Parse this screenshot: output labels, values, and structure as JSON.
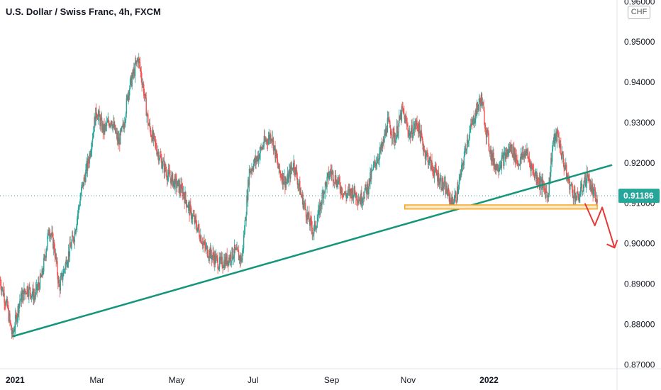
{
  "chart_data": {
    "type": "candlestick",
    "title": "U.S. Dollar / Swiss Franc, 4h, FXCM",
    "currency": "CHF",
    "ylim": [
      0.87,
      0.96
    ],
    "y_ticks": [
      "0.96000",
      "0.95000",
      "0.94000",
      "0.93000",
      "0.92000",
      "0.91000",
      "0.90000",
      "0.89000",
      "0.88000",
      "0.87000"
    ],
    "x_ticks": [
      "2021",
      "Mar",
      "May",
      "Jul",
      "Sep",
      "Nov",
      "2022"
    ],
    "current_price": "0.91186",
    "colors": {
      "up": "#26a69a",
      "down": "#ef5350",
      "trendline": "#15967a",
      "support_zone": "#f5a623",
      "arrow": "#e53935",
      "price_line": "#26a69a"
    },
    "price_path": [
      [
        0,
        0.891
      ],
      [
        3,
        0.884
      ],
      [
        5,
        0.877
      ],
      [
        8,
        0.886
      ],
      [
        11,
        0.889
      ],
      [
        14,
        0.887
      ],
      [
        17,
        0.892
      ],
      [
        20,
        0.904
      ],
      [
        22,
        0.899
      ],
      [
        24,
        0.889
      ],
      [
        27,
        0.896
      ],
      [
        30,
        0.902
      ],
      [
        33,
        0.913
      ],
      [
        36,
        0.921
      ],
      [
        39,
        0.933
      ],
      [
        42,
        0.928
      ],
      [
        45,
        0.931
      ],
      [
        48,
        0.925
      ],
      [
        50,
        0.929
      ],
      [
        52,
        0.938
      ],
      [
        54,
        0.942
      ],
      [
        56,
        0.946
      ],
      [
        58,
        0.939
      ],
      [
        60,
        0.93
      ],
      [
        62,
        0.926
      ],
      [
        65,
        0.921
      ],
      [
        68,
        0.917
      ],
      [
        71,
        0.915
      ],
      [
        74,
        0.913
      ],
      [
        77,
        0.908
      ],
      [
        80,
        0.904
      ],
      [
        83,
        0.899
      ],
      [
        86,
        0.897
      ],
      [
        89,
        0.895
      ],
      [
        92,
        0.896
      ],
      [
        95,
        0.898
      ],
      [
        98,
        0.896
      ],
      [
        101,
        0.918
      ],
      [
        104,
        0.921
      ],
      [
        107,
        0.925
      ],
      [
        110,
        0.927
      ],
      [
        113,
        0.918
      ],
      [
        116,
        0.915
      ],
      [
        119,
        0.92
      ],
      [
        122,
        0.912
      ],
      [
        125,
        0.906
      ],
      [
        127,
        0.903
      ],
      [
        129,
        0.907
      ],
      [
        131,
        0.913
      ],
      [
        134,
        0.918
      ],
      [
        137,
        0.915
      ],
      [
        140,
        0.912
      ],
      [
        143,
        0.913
      ],
      [
        146,
        0.911
      ],
      [
        149,
        0.914
      ],
      [
        152,
        0.92
      ],
      [
        155,
        0.924
      ],
      [
        157,
        0.93
      ],
      [
        160,
        0.926
      ],
      [
        163,
        0.933
      ],
      [
        166,
        0.927
      ],
      [
        169,
        0.93
      ],
      [
        172,
        0.923
      ],
      [
        175,
        0.919
      ],
      [
        178,
        0.916
      ],
      [
        181,
        0.913
      ],
      [
        183,
        0.91
      ],
      [
        185,
        0.912
      ],
      [
        187,
        0.918
      ],
      [
        189,
        0.925
      ],
      [
        191,
        0.929
      ],
      [
        193,
        0.933
      ],
      [
        195,
        0.936
      ],
      [
        197,
        0.928
      ],
      [
        199,
        0.922
      ],
      [
        201,
        0.919
      ],
      [
        204,
        0.921
      ],
      [
        207,
        0.924
      ],
      [
        210,
        0.92
      ],
      [
        213,
        0.923
      ],
      [
        216,
        0.918
      ],
      [
        219,
        0.915
      ],
      [
        222,
        0.912
      ],
      [
        224,
        0.925
      ],
      [
        226,
        0.927
      ],
      [
        228,
        0.921
      ],
      [
        230,
        0.916
      ],
      [
        232,
        0.913
      ],
      [
        234,
        0.911
      ],
      [
        236,
        0.914
      ],
      [
        238,
        0.917
      ],
      [
        240,
        0.913
      ],
      [
        242,
        0.91
      ]
    ],
    "trendline": {
      "from": [
        5,
        0.877
      ],
      "to": [
        248,
        0.9195
      ]
    },
    "support_zone": {
      "y_low": 0.9086,
      "y_high": 0.9096,
      "x_from": 164,
      "x_to": 242
    },
    "projection_arrow": [
      [
        237,
        0.91
      ],
      [
        241,
        0.9045
      ],
      [
        244,
        0.909
      ],
      [
        249,
        0.899
      ]
    ]
  }
}
